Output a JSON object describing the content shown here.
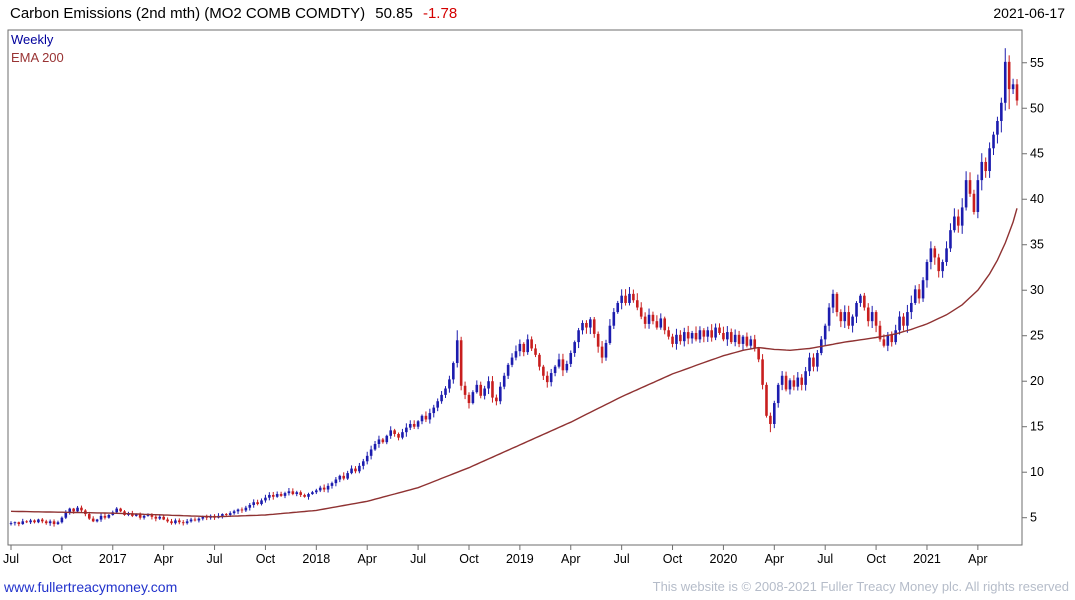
{
  "header": {
    "title": "Carbon Emissions (2nd mth) (MO2 COMB COMDTY)",
    "last_price": "50.85",
    "change": "-1.78",
    "date": "2021-06-17"
  },
  "legend": {
    "timeframe": "Weekly",
    "ema_label": "EMA 200"
  },
  "footer": {
    "site_link": "www.fullertreacymoney.com",
    "copyright": "This website is © 2008-2021 Fuller Treacy Money plc. All rights reserved"
  },
  "colors": {
    "up_candle": "#1c1cae",
    "down_candle": "#c81e1e",
    "ema_line": "#8f3232",
    "title_text": "#000000",
    "change_text": "#d40000",
    "timeframe_text": "#00009c",
    "ema_label_text": "#993333",
    "link_text": "#2233cc",
    "copyright_text": "#b5bcc9",
    "axis_text": "#000000",
    "border": "#6e6e6e"
  },
  "chart_data": {
    "type": "candlestick",
    "title": "Carbon Emissions (2nd mth) (MO2 COMB COMDTY)",
    "timeframe": "Weekly",
    "overlay": "EMA 200",
    "start": "2016-07",
    "end": "2021-06",
    "last_close": 50.85,
    "change": -1.78,
    "ylim": [
      2,
      58.6
    ],
    "y_ticks": [
      5,
      10,
      15,
      20,
      25,
      30,
      35,
      40,
      45,
      50,
      55
    ],
    "x_ticks": [
      {
        "label": "Jul",
        "week": 0
      },
      {
        "label": "Oct",
        "week": 13
      },
      {
        "label": "2017",
        "week": 26
      },
      {
        "label": "Apr",
        "week": 39
      },
      {
        "label": "Jul",
        "week": 52
      },
      {
        "label": "Oct",
        "week": 65
      },
      {
        "label": "2018",
        "week": 78
      },
      {
        "label": "Apr",
        "week": 91
      },
      {
        "label": "Jul",
        "week": 104
      },
      {
        "label": "Oct",
        "week": 117
      },
      {
        "label": "2019",
        "week": 130
      },
      {
        "label": "Apr",
        "week": 143
      },
      {
        "label": "Jul",
        "week": 156
      },
      {
        "label": "Oct",
        "week": 169
      },
      {
        "label": "2020",
        "week": 182
      },
      {
        "label": "Apr",
        "week": 195
      },
      {
        "label": "Jul",
        "week": 208
      },
      {
        "label": "Oct",
        "week": 221
      },
      {
        "label": "2021",
        "week": 234
      },
      {
        "label": "Apr",
        "week": 247
      }
    ],
    "closes": [
      4.4,
      4.5,
      4.3,
      4.6,
      4.5,
      4.7,
      4.5,
      4.8,
      4.6,
      4.4,
      4.6,
      4.3,
      4.5,
      5.0,
      5.6,
      6.0,
      5.7,
      6.1,
      5.8,
      5.4,
      4.9,
      4.6,
      4.8,
      5.2,
      5.0,
      5.3,
      5.6,
      6.0,
      5.7,
      5.3,
      5.5,
      5.2,
      5.4,
      5.0,
      5.2,
      5.4,
      5.1,
      4.9,
      5.1,
      4.8,
      4.6,
      4.4,
      4.7,
      4.5,
      4.4,
      4.6,
      4.8,
      4.7,
      4.9,
      5.1,
      5.0,
      5.2,
      5.0,
      5.2,
      5.4,
      5.3,
      5.5,
      5.7,
      5.9,
      5.8,
      6.1,
      6.4,
      6.7,
      6.5,
      6.9,
      7.2,
      7.5,
      7.3,
      7.6,
      7.4,
      7.7,
      7.9,
      7.6,
      7.8,
      7.5,
      7.3,
      7.6,
      7.8,
      8.0,
      8.3,
      8.1,
      8.5,
      8.8,
      9.2,
      9.6,
      9.3,
      9.9,
      10.4,
      10.1,
      10.7,
      11.2,
      11.8,
      12.5,
      13.1,
      13.6,
      13.3,
      14.0,
      14.6,
      14.2,
      13.8,
      14.4,
      14.9,
      15.3,
      15.0,
      15.6,
      16.2,
      15.8,
      16.5,
      17.1,
      17.8,
      18.5,
      19.2,
      20.2,
      22.0,
      24.5,
      19.5,
      18.5,
      17.6,
      18.8,
      19.6,
      18.4,
      19.2,
      20.0,
      18.2,
      17.8,
      19.4,
      20.6,
      21.8,
      22.6,
      23.3,
      24.1,
      23.2,
      24.6,
      23.6,
      22.9,
      21.6,
      20.6,
      19.9,
      20.9,
      21.6,
      22.4,
      21.2,
      21.9,
      23.1,
      24.3,
      25.6,
      26.4,
      25.9,
      26.8,
      25.2,
      23.8,
      22.6,
      24.2,
      26.1,
      27.6,
      28.6,
      29.4,
      28.6,
      29.6,
      28.9,
      28.1,
      27.1,
      26.3,
      27.3,
      26.6,
      25.9,
      26.9,
      25.6,
      24.9,
      24.1,
      25.1,
      24.4,
      25.4,
      24.7,
      25.3,
      24.6,
      25.6,
      24.9,
      25.6,
      24.8,
      25.9,
      25.3,
      24.6,
      25.4,
      24.3,
      25.1,
      24.1,
      24.9,
      23.9,
      24.6,
      23.6,
      22.4,
      19.6,
      16.2,
      15.3,
      17.6,
      19.6,
      20.6,
      19.1,
      20.1,
      19.4,
      20.4,
      19.6,
      21.1,
      22.6,
      21.6,
      23.1,
      24.6,
      26.1,
      28.1,
      29.6,
      27.6,
      26.6,
      27.6,
      26.1,
      27.1,
      28.6,
      29.4,
      28.1,
      26.6,
      27.6,
      26.1,
      24.6,
      23.9,
      25.1,
      24.3,
      25.6,
      27.1,
      26.1,
      27.6,
      28.6,
      30.1,
      29.1,
      31.1,
      33.1,
      34.6,
      33.6,
      32.1,
      33.1,
      34.6,
      36.6,
      38.1,
      37.1,
      39.1,
      42.1,
      40.6,
      38.6,
      42.1,
      44.1,
      43.1,
      45.6,
      47.1,
      48.6,
      50.6,
      55.1,
      52.1,
      52.63,
      50.85
    ],
    "wick_overrides": {
      "114": {
        "high": 25.6
      },
      "115": {
        "low": 19.0
      },
      "117": {
        "low": 17.0
      },
      "156": {
        "high": 30.1
      },
      "194": {
        "low": 14.4
      },
      "254": {
        "high": 56.6
      },
      "255": {
        "low": 49.9
      },
      "257": {
        "high": 53.2,
        "low": 50.3
      }
    },
    "ema_anchors": [
      [
        0,
        5.7
      ],
      [
        13,
        5.6
      ],
      [
        26,
        5.5
      ],
      [
        39,
        5.3
      ],
      [
        52,
        5.1
      ],
      [
        65,
        5.3
      ],
      [
        78,
        5.8
      ],
      [
        91,
        6.8
      ],
      [
        104,
        8.3
      ],
      [
        117,
        10.5
      ],
      [
        130,
        13.0
      ],
      [
        143,
        15.5
      ],
      [
        156,
        18.3
      ],
      [
        169,
        20.8
      ],
      [
        178,
        22.2
      ],
      [
        182,
        22.8
      ],
      [
        187,
        23.4
      ],
      [
        191,
        23.7
      ],
      [
        195,
        23.5
      ],
      [
        199,
        23.4
      ],
      [
        204,
        23.6
      ],
      [
        208,
        23.9
      ],
      [
        213,
        24.3
      ],
      [
        221,
        24.8
      ],
      [
        226,
        25.2
      ],
      [
        230,
        25.7
      ],
      [
        234,
        26.3
      ],
      [
        239,
        27.3
      ],
      [
        243,
        28.4
      ],
      [
        247,
        30.0
      ],
      [
        250,
        31.8
      ],
      [
        252,
        33.3
      ],
      [
        254,
        35.2
      ],
      [
        256,
        37.5
      ],
      [
        257,
        39.0
      ]
    ]
  }
}
